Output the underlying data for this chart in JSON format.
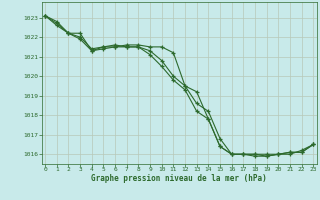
{
  "title": "Graphe pression niveau de la mer (hPa)",
  "bg_color": "#c8eaea",
  "grid_color": "#b8c8b8",
  "line_color": "#2d6a2d",
  "xlim": [
    -0.3,
    23.3
  ],
  "ylim": [
    1015.5,
    1023.8
  ],
  "yticks": [
    1016,
    1017,
    1018,
    1019,
    1020,
    1021,
    1022,
    1023
  ],
  "xticks": [
    0,
    1,
    2,
    3,
    4,
    5,
    6,
    7,
    8,
    9,
    10,
    11,
    12,
    13,
    14,
    15,
    16,
    17,
    18,
    19,
    20,
    21,
    22,
    23
  ],
  "series": [
    [
      1023.1,
      1022.6,
      1022.2,
      1022.0,
      1021.4,
      1021.5,
      1021.5,
      1021.6,
      1021.6,
      1021.5,
      1021.5,
      1021.2,
      1019.5,
      1018.6,
      1018.2,
      1016.8,
      1016.0,
      1016.0,
      1015.9,
      1015.9,
      1016.0,
      1016.0,
      1016.2,
      1016.5
    ],
    [
      1023.1,
      1022.8,
      1022.2,
      1022.2,
      1021.3,
      1021.4,
      1021.5,
      1021.5,
      1021.5,
      1021.3,
      1020.8,
      1020.0,
      1019.5,
      1019.2,
      1017.8,
      1016.4,
      1016.0,
      1016.0,
      1016.0,
      1015.9,
      1016.0,
      1016.1,
      1016.1,
      1016.5
    ],
    [
      1023.1,
      1022.7,
      1022.2,
      1021.9,
      1021.3,
      1021.5,
      1021.6,
      1021.5,
      1021.5,
      1021.1,
      1020.5,
      1019.8,
      1019.3,
      1018.2,
      1017.8,
      1016.4,
      1016.0,
      1016.0,
      1016.0,
      1016.0,
      1016.0,
      1016.1,
      1016.1,
      1016.5
    ]
  ]
}
